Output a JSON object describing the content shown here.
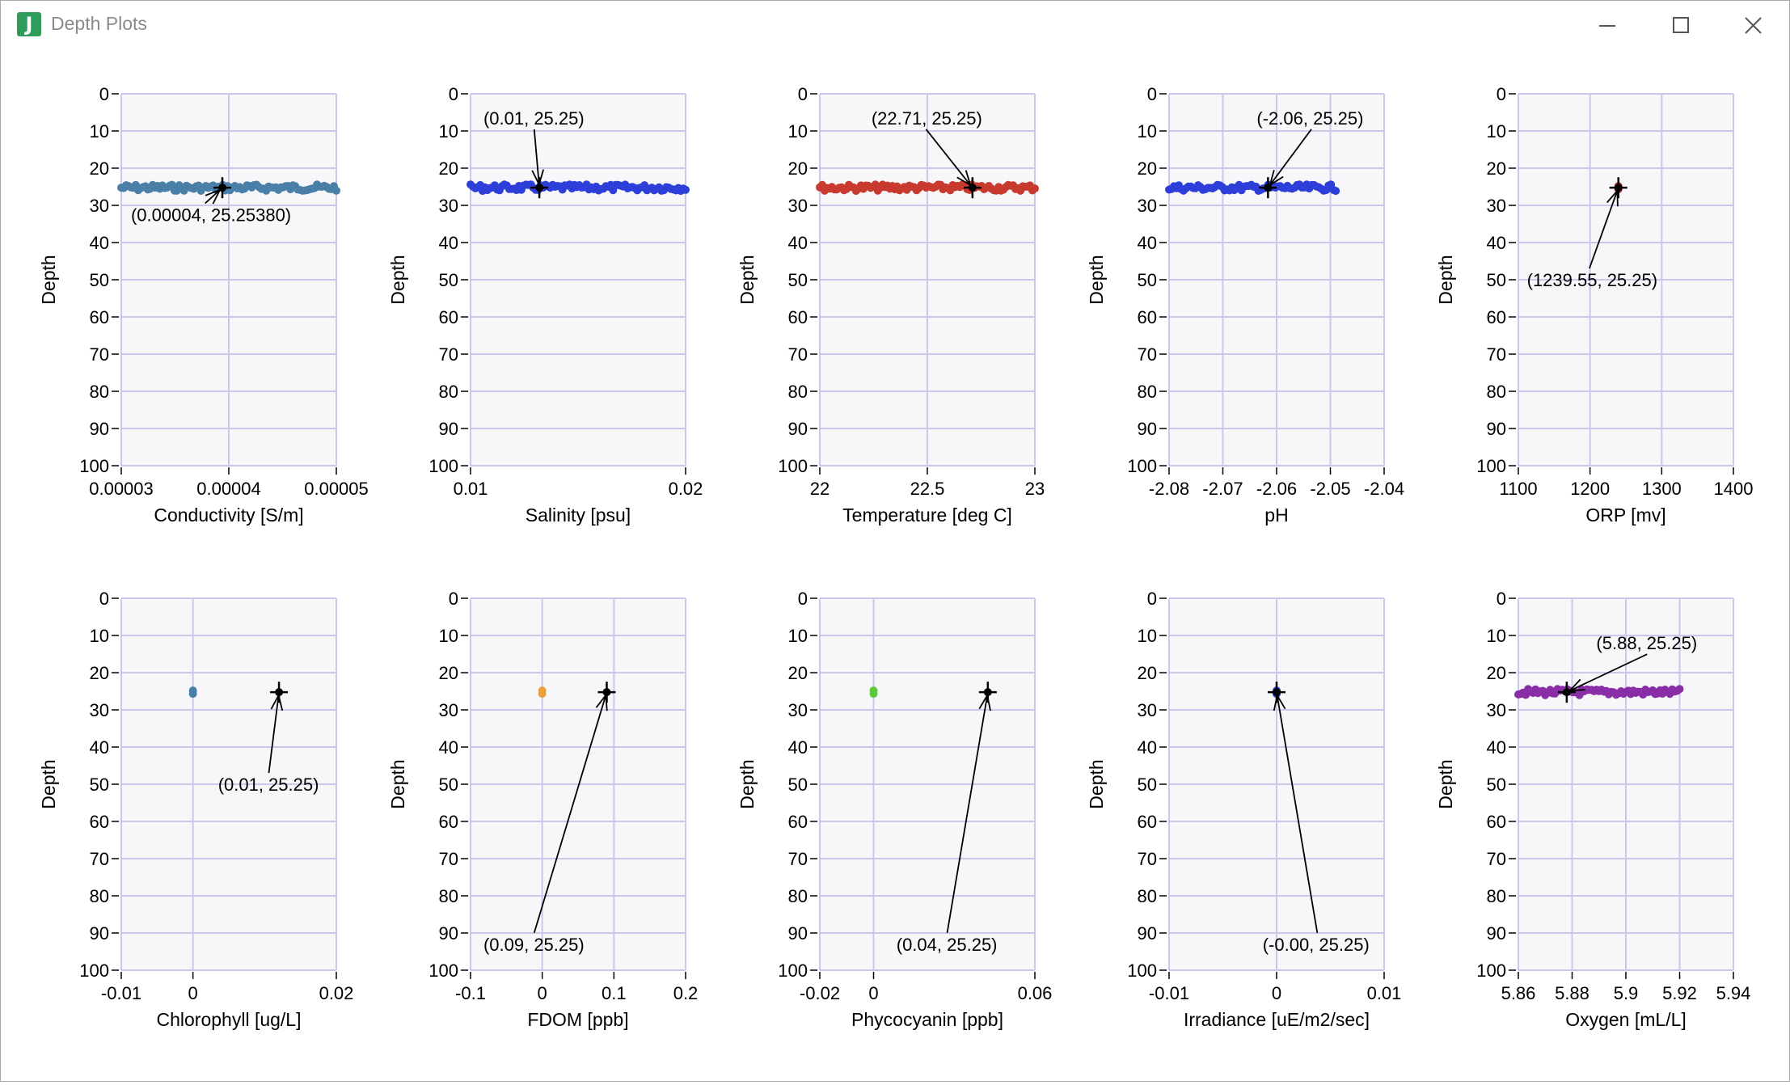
{
  "window": {
    "title": "Depth Plots"
  },
  "colors": {
    "grid": "#c8c8ec",
    "plot_bg": "#f7f7f9",
    "cursor": "#000000"
  },
  "chart_data": [
    {
      "type": "scatter",
      "xlabel": "Conductivity [S/m]",
      "ylabel": "Depth",
      "xlim": [
        3e-05,
        5e-05
      ],
      "xticks": [
        3e-05,
        4e-05,
        5e-05
      ],
      "xtick_labels": [
        "0.00003",
        "0.00004",
        "0.00005"
      ],
      "ylim": [
        0,
        100
      ],
      "yticks": [
        0,
        10,
        20,
        30,
        40,
        50,
        60,
        70,
        80,
        90,
        100
      ],
      "series_color": "#4a7fa8",
      "points": {
        "x_min": 3e-05,
        "x_max": 5e-05,
        "depth": 25.25
      },
      "cursor": {
        "x": 3.94e-05,
        "y": 25.2538,
        "label": "(0.00004, 25.25380)",
        "label_x": 3.09e-05,
        "label_y": 32.5
      }
    },
    {
      "type": "scatter",
      "xlabel": "Salinity [psu]",
      "ylabel": "Depth",
      "xlim": [
        0.01,
        0.02
      ],
      "xticks": [
        0.01,
        0.02
      ],
      "xtick_labels": [
        "0.01",
        "0.02"
      ],
      "ylim": [
        0,
        100
      ],
      "yticks": [
        0,
        10,
        20,
        30,
        40,
        50,
        60,
        70,
        80,
        90,
        100
      ],
      "series_color": "#2d3fd8",
      "points": {
        "x_min": 0.01,
        "x_max": 0.02,
        "depth": 25.25
      },
      "cursor": {
        "x": 0.0132,
        "y": 25.25,
        "label": "(0.01, 25.25)",
        "label_x": 0.0106,
        "label_y": 6.5
      }
    },
    {
      "type": "scatter",
      "xlabel": "Temperature [deg C]",
      "ylabel": "Depth",
      "xlim": [
        22,
        23
      ],
      "xticks": [
        22,
        22.5,
        23
      ],
      "xtick_labels": [
        "22",
        "22.5",
        "23"
      ],
      "ylim": [
        0,
        100
      ],
      "yticks": [
        0,
        10,
        20,
        30,
        40,
        50,
        60,
        70,
        80,
        90,
        100
      ],
      "series_color": "#c83a2e",
      "points": {
        "x_min": 22,
        "x_max": 23,
        "depth": 25.25
      },
      "cursor": {
        "x": 22.71,
        "y": 25.25,
        "label": "(22.71, 25.25)",
        "label_x": 22.24,
        "label_y": 6.5
      }
    },
    {
      "type": "scatter",
      "xlabel": "pH",
      "ylabel": "Depth",
      "xlim": [
        -2.08,
        -2.04
      ],
      "xticks": [
        -2.08,
        -2.07,
        -2.06,
        -2.05,
        -2.04
      ],
      "xtick_labels": [
        "-2.08",
        "-2.07",
        "-2.06",
        "-2.05",
        "-2.04"
      ],
      "ylim": [
        0,
        100
      ],
      "yticks": [
        0,
        10,
        20,
        30,
        40,
        50,
        60,
        70,
        80,
        90,
        100
      ],
      "series_color": "#2d3fd8",
      "points": {
        "x_min": -2.08,
        "x_max": -2.049,
        "depth": 25.25
      },
      "cursor": {
        "x": -2.0616,
        "y": 25.25,
        "label": "(-2.06, 25.25)",
        "label_x": -2.0637,
        "label_y": 6.5
      }
    },
    {
      "type": "scatter",
      "xlabel": "ORP [mv]",
      "ylabel": "Depth",
      "xlim": [
        1100,
        1400
      ],
      "xticks": [
        1100,
        1200,
        1300,
        1400
      ],
      "xtick_labels": [
        "1100",
        "1200",
        "1300",
        "1400"
      ],
      "ylim": [
        0,
        100
      ],
      "yticks": [
        0,
        10,
        20,
        30,
        40,
        50,
        60,
        70,
        80,
        90,
        100
      ],
      "series_color": "#c83a2e",
      "points": {
        "x_min": 1239.55,
        "x_max": 1239.55,
        "depth": 25.25
      },
      "cursor": {
        "x": 1239.55,
        "y": 25.25,
        "label": "(1239.55, 25.25)",
        "label_x": 1112,
        "label_y": 50
      }
    },
    {
      "type": "scatter",
      "xlabel": "Chlorophyll [ug/L]",
      "ylabel": "Depth",
      "xlim": [
        -0.01,
        0.02
      ],
      "xticks": [
        -0.01,
        0,
        0.02
      ],
      "xtick_labels": [
        "-0.01",
        "0",
        "0.02"
      ],
      "ylim": [
        0,
        100
      ],
      "yticks": [
        0,
        10,
        20,
        30,
        40,
        50,
        60,
        70,
        80,
        90,
        100
      ],
      "series_color": "#4a7fa8",
      "points": {
        "x_min": 0,
        "x_max": 0,
        "depth": 25.25
      },
      "cursor": {
        "x": 0.012,
        "y": 25.25,
        "label": "(0.01, 25.25)",
        "label_x": 0.0035,
        "label_y": 50
      }
    },
    {
      "type": "scatter",
      "xlabel": "FDOM [ppb]",
      "ylabel": "Depth",
      "xlim": [
        -0.1,
        0.2
      ],
      "xticks": [
        -0.1,
        0,
        0.1,
        0.2
      ],
      "xtick_labels": [
        "-0.1",
        "0",
        "0.1",
        "0.2"
      ],
      "ylim": [
        0,
        100
      ],
      "yticks": [
        0,
        10,
        20,
        30,
        40,
        50,
        60,
        70,
        80,
        90,
        100
      ],
      "series_color": "#e8a040",
      "points": {
        "x_min": 0,
        "x_max": 0,
        "depth": 25.25
      },
      "cursor": {
        "x": 0.09,
        "y": 25.25,
        "label": "(0.09, 25.25)",
        "label_x": -0.082,
        "label_y": 93
      }
    },
    {
      "type": "scatter",
      "xlabel": "Phycocyanin [ppb]",
      "ylabel": "Depth",
      "xlim": [
        -0.02,
        0.06
      ],
      "xticks": [
        -0.02,
        0,
        0.06
      ],
      "xtick_labels": [
        "-0.02",
        "0",
        "0.06"
      ],
      "ylim": [
        0,
        100
      ],
      "yticks": [
        0,
        10,
        20,
        30,
        40,
        50,
        60,
        70,
        80,
        90,
        100
      ],
      "series_color": "#5cc83c",
      "points": {
        "x_min": 0,
        "x_max": 0,
        "depth": 25.25
      },
      "cursor": {
        "x": 0.0425,
        "y": 25.25,
        "label": "(0.04, 25.25)",
        "label_x": 0.0085,
        "label_y": 93
      }
    },
    {
      "type": "scatter",
      "xlabel": "Irradiance [uE/m2/sec]",
      "ylabel": "Depth",
      "xlim": [
        -0.01,
        0.01
      ],
      "xticks": [
        -0.01,
        0,
        0.01
      ],
      "xtick_labels": [
        "-0.01",
        "0",
        "0.01"
      ],
      "ylim": [
        0,
        100
      ],
      "yticks": [
        0,
        10,
        20,
        30,
        40,
        50,
        60,
        70,
        80,
        90,
        100
      ],
      "series_color": "#2d3fd8",
      "points": {
        "x_min": 0,
        "x_max": 0,
        "depth": 25.25
      },
      "cursor": {
        "x": 0,
        "y": 25.25,
        "label": "(-0.00, 25.25)",
        "label_x": -0.0013,
        "label_y": 93
      }
    },
    {
      "type": "scatter",
      "xlabel": "Oxygen [mL/L]",
      "ylabel": "Depth",
      "xlim": [
        5.86,
        5.94
      ],
      "xticks": [
        5.86,
        5.88,
        5.9,
        5.92,
        5.94
      ],
      "xtick_labels": [
        "5.86",
        "5.88",
        "5.9",
        "5.92",
        "5.94"
      ],
      "ylim": [
        0,
        100
      ],
      "yticks": [
        0,
        10,
        20,
        30,
        40,
        50,
        60,
        70,
        80,
        90,
        100
      ],
      "series_color": "#8a2ea8",
      "points": {
        "x_min": 5.86,
        "x_max": 5.92,
        "depth": 25.25
      },
      "cursor": {
        "x": 5.878,
        "y": 25.25,
        "label": "(5.88, 25.25)",
        "label_x": 5.889,
        "label_y": 12
      }
    }
  ]
}
